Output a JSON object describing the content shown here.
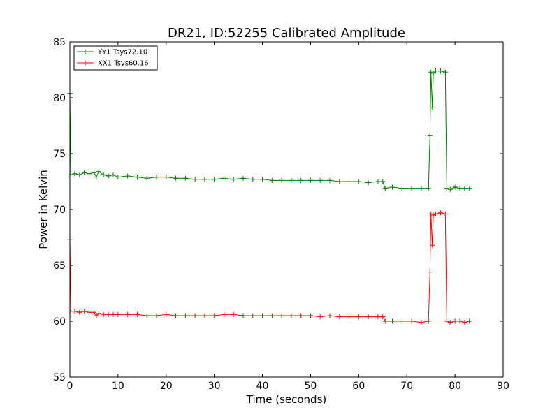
{
  "chart_data": {
    "type": "line",
    "title": "DR21, ID:52255 Calibrated Amplitude",
    "xlabel": "Time (seconds)",
    "ylabel": "Power in Kelvin",
    "xlim": [
      0,
      90
    ],
    "ylim": [
      55,
      85
    ],
    "x_ticks": [
      0,
      10,
      20,
      30,
      40,
      50,
      60,
      70,
      80,
      90
    ],
    "y_ticks": [
      55,
      60,
      65,
      70,
      75,
      80,
      85
    ],
    "grid": false,
    "legend_position": "top-left",
    "marker": "plus",
    "series": [
      {
        "name": "YY1 Tsys72.10",
        "color": "#008000",
        "points": [
          [
            0.0,
            80.4
          ],
          [
            0.2,
            73.1
          ],
          [
            1,
            73.2
          ],
          [
            2,
            73.1
          ],
          [
            3,
            73.3
          ],
          [
            4,
            73.2
          ],
          [
            5,
            73.3
          ],
          [
            5.5,
            72.9
          ],
          [
            6,
            73.4
          ],
          [
            7,
            73.1
          ],
          [
            8,
            73.0
          ],
          [
            9,
            73.1
          ],
          [
            10,
            72.9
          ],
          [
            12,
            73.0
          ],
          [
            14,
            72.9
          ],
          [
            16,
            72.8
          ],
          [
            18,
            72.9
          ],
          [
            20,
            72.9
          ],
          [
            22,
            72.8
          ],
          [
            24,
            72.8
          ],
          [
            26,
            72.7
          ],
          [
            28,
            72.7
          ],
          [
            30,
            72.7
          ],
          [
            32,
            72.8
          ],
          [
            34,
            72.7
          ],
          [
            36,
            72.8
          ],
          [
            38,
            72.7
          ],
          [
            40,
            72.7
          ],
          [
            42,
            72.6
          ],
          [
            44,
            72.6
          ],
          [
            46,
            72.6
          ],
          [
            48,
            72.6
          ],
          [
            50,
            72.6
          ],
          [
            52,
            72.6
          ],
          [
            54,
            72.6
          ],
          [
            56,
            72.5
          ],
          [
            58,
            72.5
          ],
          [
            60,
            72.5
          ],
          [
            62,
            72.4
          ],
          [
            64,
            72.5
          ],
          [
            65,
            72.5
          ],
          [
            65.5,
            71.9
          ],
          [
            67,
            72.0
          ],
          [
            69,
            71.9
          ],
          [
            71,
            71.9
          ],
          [
            73,
            71.9
          ],
          [
            74.5,
            71.9
          ],
          [
            74.8,
            76.6
          ],
          [
            75,
            82.3
          ],
          [
            75.3,
            79.1
          ],
          [
            75.5,
            82.2
          ],
          [
            76,
            82.4
          ],
          [
            77,
            82.4
          ],
          [
            78,
            82.3
          ],
          [
            78.3,
            71.9
          ],
          [
            79,
            71.8
          ],
          [
            80,
            72.0
          ],
          [
            81,
            71.9
          ],
          [
            82,
            71.9
          ],
          [
            83,
            71.9
          ]
        ]
      },
      {
        "name": "XX1 Tsys60.16",
        "color": "#ff0000",
        "points": [
          [
            0.0,
            67.3
          ],
          [
            0.2,
            60.9
          ],
          [
            1,
            60.9
          ],
          [
            2,
            60.8
          ],
          [
            3,
            60.9
          ],
          [
            4,
            60.8
          ],
          [
            5,
            60.8
          ],
          [
            5.5,
            60.5
          ],
          [
            6,
            60.7
          ],
          [
            7,
            60.6
          ],
          [
            8,
            60.6
          ],
          [
            9,
            60.6
          ],
          [
            10,
            60.6
          ],
          [
            12,
            60.6
          ],
          [
            14,
            60.6
          ],
          [
            16,
            60.5
          ],
          [
            18,
            60.5
          ],
          [
            20,
            60.6
          ],
          [
            22,
            60.5
          ],
          [
            24,
            60.5
          ],
          [
            26,
            60.5
          ],
          [
            28,
            60.5
          ],
          [
            30,
            60.5
          ],
          [
            32,
            60.6
          ],
          [
            34,
            60.6
          ],
          [
            36,
            60.5
          ],
          [
            38,
            60.5
          ],
          [
            40,
            60.5
          ],
          [
            42,
            60.5
          ],
          [
            44,
            60.5
          ],
          [
            46,
            60.5
          ],
          [
            48,
            60.5
          ],
          [
            50,
            60.5
          ],
          [
            52,
            60.4
          ],
          [
            54,
            60.5
          ],
          [
            56,
            60.4
          ],
          [
            58,
            60.4
          ],
          [
            60,
            60.4
          ],
          [
            62,
            60.4
          ],
          [
            64,
            60.4
          ],
          [
            65,
            60.4
          ],
          [
            65.5,
            60.0
          ],
          [
            67,
            60.0
          ],
          [
            69,
            60.0
          ],
          [
            71,
            60.0
          ],
          [
            73,
            59.9
          ],
          [
            74.5,
            60.0
          ],
          [
            74.8,
            64.4
          ],
          [
            75,
            69.6
          ],
          [
            75.3,
            66.8
          ],
          [
            75.5,
            69.5
          ],
          [
            76,
            69.6
          ],
          [
            77,
            69.7
          ],
          [
            78,
            69.6
          ],
          [
            78.3,
            60.0
          ],
          [
            79,
            59.9
          ],
          [
            80,
            60.0
          ],
          [
            81,
            60.0
          ],
          [
            82,
            59.9
          ],
          [
            83,
            60.0
          ]
        ]
      }
    ]
  }
}
